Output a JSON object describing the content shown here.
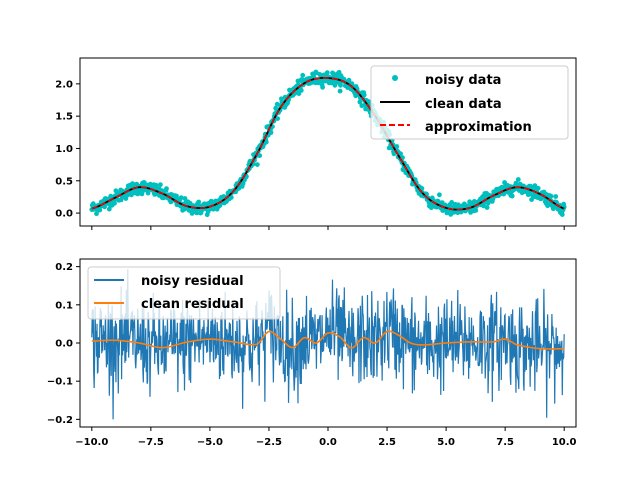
{
  "chart_data": [
    {
      "type": "scatter",
      "title": "",
      "xlabel": "",
      "ylabel": "",
      "xlim": [
        -10.5,
        10.5
      ],
      "ylim": [
        -0.2,
        2.4
      ],
      "x_ticks": [
        -10,
        -7.5,
        -5,
        -2.5,
        0,
        2.5,
        5,
        7.5,
        10
      ],
      "x_tick_labels_visible": false,
      "y_ticks": [
        0.0,
        0.5,
        1.0,
        1.5,
        2.0
      ],
      "y_tick_labels": [
        "0.0",
        "0.5",
        "1.0",
        "1.5",
        "2.0"
      ],
      "legend_position": "top-right",
      "series": [
        {
          "name": "noisy data",
          "kind": "scatter",
          "color": "#00bfbf",
          "x": [
            -10.0,
            -9.0,
            -8.0,
            -7.0,
            -6.0,
            -5.0,
            -4.0,
            -3.0,
            -2.0,
            -1.0,
            0.0,
            1.0,
            2.0,
            3.0,
            4.0,
            5.0,
            6.0,
            7.0,
            8.0,
            9.0,
            10.0
          ],
          "values": [
            0.07,
            0.24,
            0.4,
            0.3,
            0.11,
            0.1,
            0.34,
            0.92,
            1.64,
            2.01,
            2.09,
            1.96,
            1.5,
            0.88,
            0.31,
            0.08,
            0.08,
            0.27,
            0.4,
            0.29,
            0.07
          ],
          "noise_std": 0.05
        },
        {
          "name": "clean data",
          "kind": "line",
          "color": "#000000",
          "x": [
            -10.0,
            -9.0,
            -8.0,
            -7.0,
            -6.0,
            -5.0,
            -4.0,
            -3.0,
            -2.0,
            -1.0,
            0.0,
            1.0,
            2.0,
            3.0,
            4.0,
            5.0,
            6.0,
            7.0,
            8.0,
            9.0,
            10.0
          ],
          "values": [
            0.07,
            0.24,
            0.4,
            0.3,
            0.11,
            0.1,
            0.34,
            0.92,
            1.64,
            2.01,
            2.09,
            1.96,
            1.5,
            0.88,
            0.31,
            0.08,
            0.08,
            0.27,
            0.4,
            0.29,
            0.07
          ]
        },
        {
          "name": "approximation",
          "kind": "dashed-line",
          "color": "#ff0000",
          "x": [
            -10.0,
            -9.0,
            -8.0,
            -7.0,
            -6.0,
            -5.0,
            -4.0,
            -3.0,
            -2.0,
            -1.0,
            0.0,
            1.0,
            2.0,
            3.0,
            4.0,
            5.0,
            6.0,
            7.0,
            8.0,
            9.0,
            10.0
          ],
          "values": [
            0.07,
            0.24,
            0.4,
            0.3,
            0.11,
            0.1,
            0.34,
            0.92,
            1.64,
            2.01,
            2.09,
            1.96,
            1.5,
            0.88,
            0.31,
            0.08,
            0.08,
            0.27,
            0.4,
            0.29,
            0.07
          ]
        }
      ]
    },
    {
      "type": "line",
      "title": "",
      "xlabel": "",
      "ylabel": "",
      "xlim": [
        -10.5,
        10.5
      ],
      "ylim": [
        -0.22,
        0.22
      ],
      "x_ticks": [
        -10,
        -7.5,
        -5,
        -2.5,
        0,
        2.5,
        5,
        7.5,
        10
      ],
      "x_tick_labels": [
        "−10.0",
        "−7.5",
        "−5.0",
        "−2.5",
        "0.0",
        "2.5",
        "5.0",
        "7.5",
        "10.0"
      ],
      "y_ticks": [
        -0.2,
        -0.1,
        0.0,
        0.1,
        0.2
      ],
      "y_tick_labels": [
        "−0.2",
        "−0.1",
        "0.0",
        "0.1",
        "0.2"
      ],
      "legend_position": "top-left",
      "series": [
        {
          "name": "noisy residual",
          "kind": "noisy-line",
          "color": "#1f77b4",
          "amplitude_range": [
            -0.2,
            0.2
          ],
          "noise_std": 0.06
        },
        {
          "name": "clean residual",
          "kind": "line",
          "color": "#ff7f0e",
          "x": [
            -10.0,
            -9.0,
            -8.0,
            -7.0,
            -6.0,
            -5.0,
            -4.0,
            -3.0,
            -2.5,
            -2.0,
            -1.5,
            -1.0,
            -0.5,
            0.0,
            0.5,
            1.0,
            1.5,
            2.0,
            2.5,
            3.0,
            3.5,
            4.0,
            5.0,
            6.0,
            7.0,
            7.5,
            8.0,
            9.0,
            10.0
          ],
          "values": [
            0.005,
            0.007,
            0.0,
            -0.012,
            0.002,
            0.01,
            0.003,
            -0.003,
            0.03,
            0.01,
            -0.012,
            0.014,
            0.0,
            0.026,
            0.016,
            -0.013,
            0.014,
            0.0,
            0.03,
            0.02,
            0.0,
            -0.005,
            0.0,
            0.003,
            0.003,
            0.01,
            -0.005,
            -0.015,
            -0.015
          ]
        }
      ]
    }
  ]
}
